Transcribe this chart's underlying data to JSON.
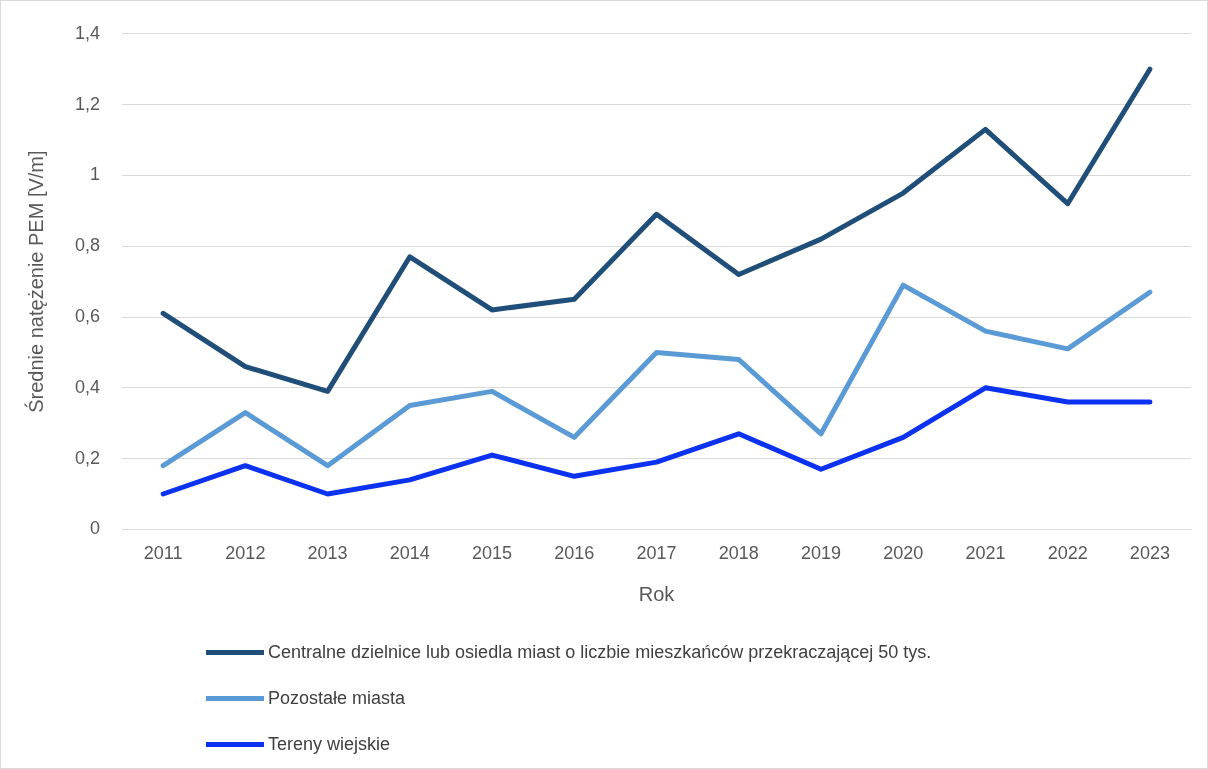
{
  "chart_data": {
    "type": "line",
    "xlabel": "Rok",
    "ylabel": "Średnie natężenie PEM [V/m]",
    "categories": [
      "2011",
      "2012",
      "2013",
      "2014",
      "2015",
      "2016",
      "2017",
      "2018",
      "2019",
      "2020",
      "2021",
      "2022",
      "2023"
    ],
    "series": [
      {
        "name": "Centralne dzielnice lub osiedla miast o liczbie mieszkańców przekraczającej 50 tys.",
        "color": "#1f4e79",
        "values": [
          0.61,
          0.46,
          0.39,
          0.77,
          0.62,
          0.65,
          0.89,
          0.72,
          0.82,
          0.95,
          1.13,
          0.92,
          1.3
        ]
      },
      {
        "name": "Pozostałe miasta",
        "color": "#5b9bd5",
        "values": [
          0.18,
          0.33,
          0.18,
          0.35,
          0.39,
          0.26,
          0.5,
          0.48,
          0.27,
          0.69,
          0.56,
          0.51,
          0.67
        ]
      },
      {
        "name": "Tereny wiejskie",
        "color": "#0a32f0",
        "values": [
          0.1,
          0.18,
          0.1,
          0.14,
          0.21,
          0.15,
          0.19,
          0.27,
          0.17,
          0.26,
          0.4,
          0.36,
          0.36
        ]
      }
    ],
    "ylim": [
      0,
      1.4
    ],
    "yticks": [
      0,
      {
        "value": 0.2,
        "label": "0,2"
      },
      {
        "value": 0.4,
        "label": "0,4"
      },
      {
        "value": 0.6,
        "label": "0,6"
      },
      {
        "value": 0.8,
        "label": "0,8"
      },
      1,
      {
        "value": 1.2,
        "label": "1,2"
      },
      {
        "value": 1.4,
        "label": "1,4"
      }
    ],
    "grid": "y",
    "legend": "bottom",
    "marker": "none",
    "line_style": "solid"
  }
}
